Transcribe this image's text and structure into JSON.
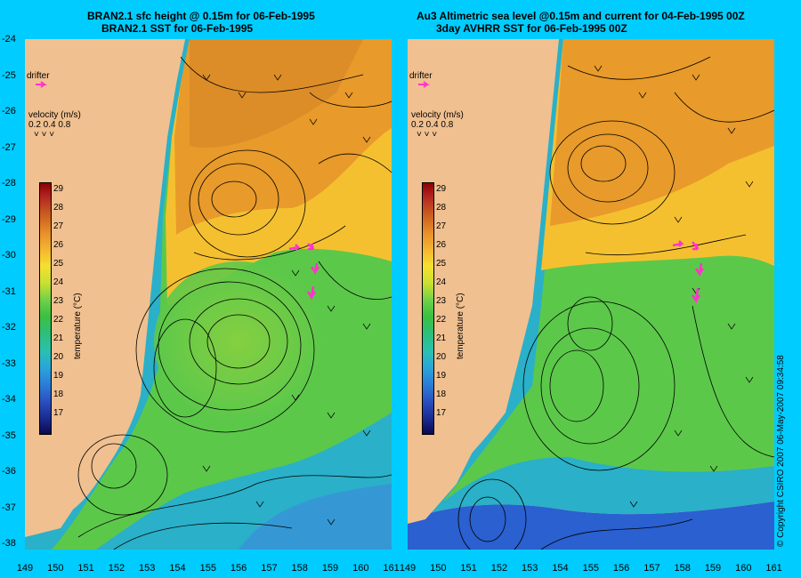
{
  "left_panel": {
    "title_line1": "BRAN2.1 sfc height @ 0.15m for 06-Feb-1995",
    "title_line2": "BRAN2.1 SST for 06-Feb-1995",
    "drifter_label": "drifter",
    "velocity_label": "velocity (m/s)",
    "velocity_scale": "0.2 0.4 0.8",
    "colorbar_title": "temperature (°C)"
  },
  "right_panel": {
    "title_line1": "Au3 Altimetric sea level  @0.15m and current for 04-Feb-1995 00Z",
    "title_line2": "3day AVHRR SST for 06-Feb-1995 00Z",
    "drifter_label": "drifter",
    "velocity_label": "velocity (m/s)",
    "velocity_scale": "0.2 0.4 0.8",
    "colorbar_title": "temperature (°C)"
  },
  "colorbar_ticks": [
    "29",
    "28",
    "27",
    "26",
    "25",
    "24",
    "23",
    "22",
    "21",
    "20",
    "19",
    "18",
    "17"
  ],
  "lat_ticks": [
    "-24",
    "-25",
    "-26",
    "-27",
    "-28",
    "-29",
    "-30",
    "-31",
    "-32",
    "-33",
    "-34",
    "-35",
    "-36",
    "-37",
    "-38"
  ],
  "lon_ticks": [
    "149",
    "150",
    "151",
    "152",
    "153",
    "154",
    "155",
    "156",
    "157",
    "158",
    "159",
    "160",
    "161"
  ],
  "copyright": "© Copyright CSIRO 2007 06-May-2007 09:34:58",
  "colors": {
    "background": "#00ccff",
    "land": "#f0c090",
    "drifter": "#ff33cc",
    "warm": "#e89a2a",
    "mid": "#f5c030",
    "cool": "#5cc84a",
    "cold": "#2ab0c8",
    "coldest": "#2a60d0"
  }
}
